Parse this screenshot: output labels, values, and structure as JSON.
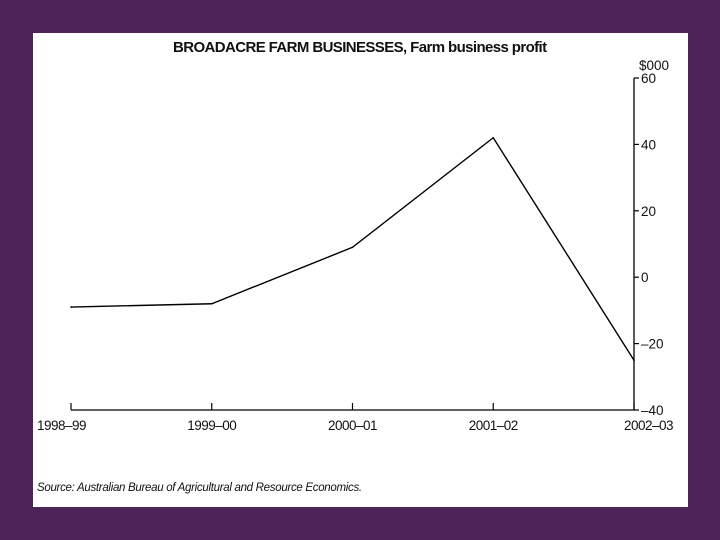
{
  "chart_data": {
    "type": "line",
    "title": "BROADACRE FARM BUSINESSES, Farm business profit",
    "ylabel": "$000",
    "xlabel": "",
    "categories": [
      "1998–99",
      "1999–00",
      "2000–01",
      "2001–02",
      "2002–03"
    ],
    "values": [
      -9,
      -8,
      9,
      42,
      -25
    ],
    "ylim": [
      -40,
      60
    ],
    "yticks": [
      60,
      40,
      20,
      0,
      -20,
      -40
    ],
    "ytick_labels": [
      "60",
      "40",
      "20",
      "0",
      "–20",
      "–40"
    ],
    "y_axis_side": "right",
    "grid": false,
    "line_color": "#000000"
  },
  "source": "Source: Australian Bureau of Agricultural and Resource Economics."
}
